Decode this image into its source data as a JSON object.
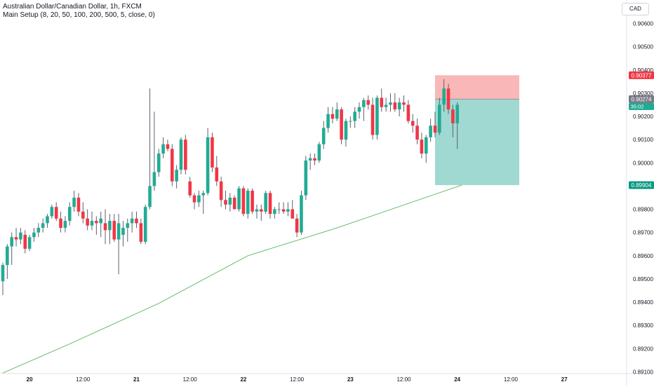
{
  "header": {
    "symbol_line": "Australian Dollar/Canadian Dollar, 1h, FXCM",
    "indicator_line": "Main Setup (8, 20, 50, 100, 200, 500, 5, close, 0)"
  },
  "currency_label": "CAD",
  "colors": {
    "up": "#22ab94",
    "down": "#f23645",
    "ma": "#66bb6a",
    "stop_zone": "#f9b7b7",
    "target_zone": "#9fd9d2",
    "stop_badge": "#f23645",
    "entry_badge": "#787b86",
    "countdown_badge": "#22ab94",
    "target_badge": "#089981"
  },
  "chart_data": {
    "type": "candlestick",
    "title": "Australian Dollar/Canadian Dollar, 1h, FXCM",
    "y_axis": {
      "ticks": [
        "0.90600",
        "0.90500",
        "0.90400",
        "0.90300",
        "0.90200",
        "0.90100",
        "0.90000",
        "0.89900",
        "0.89800",
        "0.89700",
        "0.89600",
        "0.89500",
        "0.89400",
        "0.89300",
        "0.89200",
        "0.89100"
      ],
      "min": 0.891,
      "max": 0.906,
      "position": "right"
    },
    "x_axis": {
      "labels": [
        "20",
        "12:00",
        "21",
        "12:00",
        "22",
        "12:00",
        "23",
        "12:00",
        "24",
        "12:00",
        "27"
      ],
      "label_bar_index": [
        6,
        18,
        30,
        42,
        54,
        66,
        78,
        90,
        102,
        114,
        126
      ]
    },
    "candles": [
      {
        "o": 0.8949,
        "h": 0.8957,
        "l": 0.8943,
        "c": 0.8956
      },
      {
        "o": 0.8956,
        "h": 0.8965,
        "l": 0.895,
        "c": 0.8964
      },
      {
        "o": 0.8964,
        "h": 0.897,
        "l": 0.8956,
        "c": 0.8968
      },
      {
        "o": 0.8968,
        "h": 0.8972,
        "l": 0.8964,
        "c": 0.8967
      },
      {
        "o": 0.8967,
        "h": 0.8972,
        "l": 0.8965,
        "c": 0.897
      },
      {
        "o": 0.8969,
        "h": 0.8971,
        "l": 0.8961,
        "c": 0.8963
      },
      {
        "o": 0.8963,
        "h": 0.8969,
        "l": 0.8962,
        "c": 0.8968
      },
      {
        "o": 0.8968,
        "h": 0.8972,
        "l": 0.8966,
        "c": 0.897
      },
      {
        "o": 0.897,
        "h": 0.8974,
        "l": 0.8968,
        "c": 0.8972
      },
      {
        "o": 0.8972,
        "h": 0.8976,
        "l": 0.897,
        "c": 0.8974
      },
      {
        "o": 0.8974,
        "h": 0.8978,
        "l": 0.8972,
        "c": 0.8977
      },
      {
        "o": 0.8977,
        "h": 0.8982,
        "l": 0.8976,
        "c": 0.8981
      },
      {
        "o": 0.8981,
        "h": 0.8983,
        "l": 0.8975,
        "c": 0.8976
      },
      {
        "o": 0.8976,
        "h": 0.8979,
        "l": 0.897,
        "c": 0.8972
      },
      {
        "o": 0.8972,
        "h": 0.8977,
        "l": 0.897,
        "c": 0.8975
      },
      {
        "o": 0.8975,
        "h": 0.8983,
        "l": 0.8973,
        "c": 0.8981
      },
      {
        "o": 0.8981,
        "h": 0.8988,
        "l": 0.8979,
        "c": 0.8985
      },
      {
        "o": 0.8985,
        "h": 0.8987,
        "l": 0.8977,
        "c": 0.8979
      },
      {
        "o": 0.8979,
        "h": 0.8983,
        "l": 0.8974,
        "c": 0.8976
      },
      {
        "o": 0.8976,
        "h": 0.898,
        "l": 0.8971,
        "c": 0.8973
      },
      {
        "o": 0.8973,
        "h": 0.8979,
        "l": 0.8971,
        "c": 0.8975
      },
      {
        "o": 0.8975,
        "h": 0.8977,
        "l": 0.8969,
        "c": 0.8974
      },
      {
        "o": 0.8974,
        "h": 0.8979,
        "l": 0.8968,
        "c": 0.8976
      },
      {
        "o": 0.8974,
        "h": 0.898,
        "l": 0.8965,
        "c": 0.8971
      },
      {
        "o": 0.8971,
        "h": 0.8978,
        "l": 0.8965,
        "c": 0.8975
      },
      {
        "o": 0.8975,
        "h": 0.8978,
        "l": 0.8966,
        "c": 0.8967
      },
      {
        "o": 0.8967,
        "h": 0.8978,
        "l": 0.8952,
        "c": 0.8974
      },
      {
        "o": 0.8969,
        "h": 0.8975,
        "l": 0.8964,
        "c": 0.8972
      },
      {
        "o": 0.8972,
        "h": 0.8976,
        "l": 0.8966,
        "c": 0.8974
      },
      {
        "o": 0.8974,
        "h": 0.8979,
        "l": 0.897,
        "c": 0.8976
      },
      {
        "o": 0.8976,
        "h": 0.8979,
        "l": 0.8972,
        "c": 0.8974
      },
      {
        "o": 0.8974,
        "h": 0.8976,
        "l": 0.8965,
        "c": 0.8966
      },
      {
        "o": 0.8966,
        "h": 0.8982,
        "l": 0.8965,
        "c": 0.8981
      },
      {
        "o": 0.8981,
        "h": 0.9032,
        "l": 0.898,
        "c": 0.899
      },
      {
        "o": 0.899,
        "h": 0.9022,
        "l": 0.8988,
        "c": 0.8996
      },
      {
        "o": 0.8996,
        "h": 0.9006,
        "l": 0.8994,
        "c": 0.9004
      },
      {
        "o": 0.9004,
        "h": 0.9011,
        "l": 0.9002,
        "c": 0.9008
      },
      {
        "o": 0.9008,
        "h": 0.901,
        "l": 0.9005,
        "c": 0.9006
      },
      {
        "o": 0.9006,
        "h": 0.9008,
        "l": 0.899,
        "c": 0.8992
      },
      {
        "o": 0.8992,
        "h": 0.8999,
        "l": 0.8989,
        "c": 0.8997
      },
      {
        "o": 0.8997,
        "h": 0.9011,
        "l": 0.8995,
        "c": 0.901
      },
      {
        "o": 0.901,
        "h": 0.9012,
        "l": 0.8995,
        "c": 0.8997
      },
      {
        "o": 0.8992,
        "h": 0.8994,
        "l": 0.8985,
        "c": 0.8986
      },
      {
        "o": 0.8986,
        "h": 0.8987,
        "l": 0.898,
        "c": 0.8983
      },
      {
        "o": 0.8983,
        "h": 0.8988,
        "l": 0.8981,
        "c": 0.8986
      },
      {
        "o": 0.8986,
        "h": 0.8988,
        "l": 0.8978,
        "c": 0.8987
      },
      {
        "o": 0.8987,
        "h": 0.9015,
        "l": 0.8986,
        "c": 0.9011
      },
      {
        "o": 0.9011,
        "h": 0.9013,
        "l": 0.8996,
        "c": 0.8998
      },
      {
        "o": 0.8998,
        "h": 0.9003,
        "l": 0.899,
        "c": 0.8992
      },
      {
        "o": 0.8992,
        "h": 0.8994,
        "l": 0.8981,
        "c": 0.8984
      },
      {
        "o": 0.8984,
        "h": 0.8988,
        "l": 0.898,
        "c": 0.8982
      },
      {
        "o": 0.8982,
        "h": 0.8987,
        "l": 0.8979,
        "c": 0.8985
      },
      {
        "o": 0.8985,
        "h": 0.8986,
        "l": 0.898,
        "c": 0.898
      },
      {
        "o": 0.898,
        "h": 0.899,
        "l": 0.8979,
        "c": 0.8989
      },
      {
        "o": 0.8989,
        "h": 0.899,
        "l": 0.8977,
        "c": 0.8978
      },
      {
        "o": 0.8978,
        "h": 0.8989,
        "l": 0.8976,
        "c": 0.8988
      },
      {
        "o": 0.8988,
        "h": 0.8989,
        "l": 0.8978,
        "c": 0.8979
      },
      {
        "o": 0.8979,
        "h": 0.8982,
        "l": 0.8976,
        "c": 0.898
      },
      {
        "o": 0.898,
        "h": 0.8982,
        "l": 0.8975,
        "c": 0.8979
      },
      {
        "o": 0.8979,
        "h": 0.8988,
        "l": 0.8978,
        "c": 0.8987
      },
      {
        "o": 0.8987,
        "h": 0.8988,
        "l": 0.8976,
        "c": 0.8978
      },
      {
        "o": 0.8978,
        "h": 0.8981,
        "l": 0.8976,
        "c": 0.898
      },
      {
        "o": 0.898,
        "h": 0.8983,
        "l": 0.8978,
        "c": 0.898
      },
      {
        "o": 0.898,
        "h": 0.8983,
        "l": 0.8978,
        "c": 0.8979
      },
      {
        "o": 0.8979,
        "h": 0.8983,
        "l": 0.8977,
        "c": 0.898
      },
      {
        "o": 0.898,
        "h": 0.8984,
        "l": 0.8976,
        "c": 0.8976
      },
      {
        "o": 0.8976,
        "h": 0.8978,
        "l": 0.8968,
        "c": 0.897
      },
      {
        "o": 0.897,
        "h": 0.8988,
        "l": 0.8969,
        "c": 0.8986
      },
      {
        "o": 0.8986,
        "h": 0.9003,
        "l": 0.8984,
        "c": 0.9001
      },
      {
        "o": 0.9001,
        "h": 0.9004,
        "l": 0.8997,
        "c": 0.9002
      },
      {
        "o": 0.9002,
        "h": 0.9004,
        "l": 0.8999,
        "c": 0.9001
      },
      {
        "o": 0.9001,
        "h": 0.9009,
        "l": 0.9,
        "c": 0.9008
      },
      {
        "o": 0.9008,
        "h": 0.9018,
        "l": 0.9006,
        "c": 0.9015
      },
      {
        "o": 0.9015,
        "h": 0.9024,
        "l": 0.9013,
        "c": 0.9021
      },
      {
        "o": 0.9021,
        "h": 0.9024,
        "l": 0.9017,
        "c": 0.9019
      },
      {
        "o": 0.9019,
        "h": 0.9026,
        "l": 0.9018,
        "c": 0.9023
      },
      {
        "o": 0.9023,
        "h": 0.9024,
        "l": 0.9008,
        "c": 0.901
      },
      {
        "o": 0.901,
        "h": 0.9019,
        "l": 0.9007,
        "c": 0.9018
      },
      {
        "o": 0.9018,
        "h": 0.902,
        "l": 0.9015,
        "c": 0.9018
      },
      {
        "o": 0.9018,
        "h": 0.9024,
        "l": 0.9015,
        "c": 0.9022
      },
      {
        "o": 0.9022,
        "h": 0.9026,
        "l": 0.9019,
        "c": 0.9024
      },
      {
        "o": 0.9024,
        "h": 0.9028,
        "l": 0.9018,
        "c": 0.9027
      },
      {
        "o": 0.9027,
        "h": 0.9029,
        "l": 0.9023,
        "c": 0.9025
      },
      {
        "o": 0.9025,
        "h": 0.9028,
        "l": 0.901,
        "c": 0.9012
      },
      {
        "o": 0.9012,
        "h": 0.9029,
        "l": 0.901,
        "c": 0.9028
      },
      {
        "o": 0.9028,
        "h": 0.9032,
        "l": 0.9022,
        "c": 0.9024
      },
      {
        "o": 0.9024,
        "h": 0.9028,
        "l": 0.9022,
        "c": 0.9025
      },
      {
        "o": 0.9025,
        "h": 0.903,
        "l": 0.9022,
        "c": 0.9026
      },
      {
        "o": 0.9026,
        "h": 0.903,
        "l": 0.9022,
        "c": 0.9023
      },
      {
        "o": 0.9023,
        "h": 0.9028,
        "l": 0.902,
        "c": 0.9026
      },
      {
        "o": 0.9026,
        "h": 0.9029,
        "l": 0.9022,
        "c": 0.9025
      },
      {
        "o": 0.9025,
        "h": 0.9027,
        "l": 0.9017,
        "c": 0.9018
      },
      {
        "o": 0.9018,
        "h": 0.9021,
        "l": 0.9013,
        "c": 0.9016
      },
      {
        "o": 0.9016,
        "h": 0.9019,
        "l": 0.9008,
        "c": 0.901
      },
      {
        "o": 0.901,
        "h": 0.9013,
        "l": 0.9002,
        "c": 0.9004
      },
      {
        "o": 0.9004,
        "h": 0.9012,
        "l": 0.9,
        "c": 0.9011
      },
      {
        "o": 0.9011,
        "h": 0.9019,
        "l": 0.9009,
        "c": 0.9016
      },
      {
        "o": 0.9016,
        "h": 0.9022,
        "l": 0.9011,
        "c": 0.9013
      },
      {
        "o": 0.9013,
        "h": 0.9028,
        "l": 0.9012,
        "c": 0.9025
      },
      {
        "o": 0.9025,
        "h": 0.9036,
        "l": 0.9022,
        "c": 0.9032
      },
      {
        "o": 0.9032,
        "h": 0.9034,
        "l": 0.9021,
        "c": 0.9023
      },
      {
        "o": 0.9023,
        "h": 0.9025,
        "l": 0.9011,
        "c": 0.9017
      },
      {
        "o": 0.9017,
        "h": 0.9026,
        "l": 0.9006,
        "c": 0.9025
      }
    ],
    "moving_average": {
      "start": [
        0,
        0.89095
      ],
      "points": [
        [
          15,
          0.8922
        ],
        [
          35,
          0.89395
        ],
        [
          55,
          0.896
        ],
        [
          75,
          0.8972
        ],
        [
          103,
          0.89904
        ]
      ]
    },
    "position_tool": {
      "side": "short",
      "entry": 0.90274,
      "stop": 0.90377,
      "target": 0.89904
    },
    "price_badges": {
      "stop": "0.90377",
      "entry": "0.90274",
      "countdown": "35:02",
      "target": "0.89904"
    },
    "grid": false,
    "legend": "none"
  }
}
